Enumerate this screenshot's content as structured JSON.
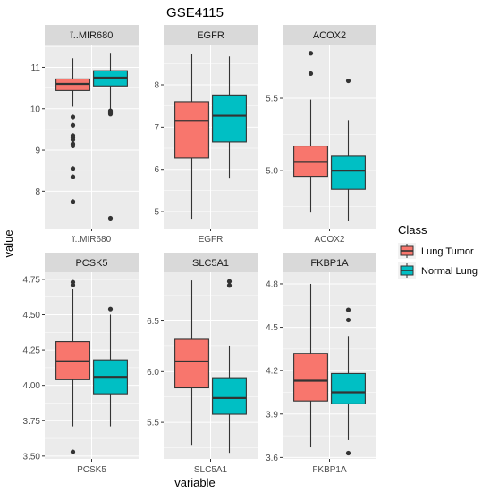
{
  "chart_data": {
    "type": "boxplot",
    "title": "GSE4115",
    "xlabel": "variable",
    "ylabel": "value",
    "legend": {
      "title": "Class",
      "position": "right",
      "entries": [
        {
          "name": "Lung Tumor",
          "color": "#F8766D"
        },
        {
          "name": "Normal Lung",
          "color": "#00BFC4"
        }
      ]
    },
    "colors": {
      "panel_bg": "#EBEBEB",
      "strip_bg": "#D9D9D9",
      "grid": "#FFFFFF",
      "tumor": "#F8766D",
      "normal": "#00BFC4"
    },
    "facets": [
      {
        "strip": "ï..MIR680",
        "category": "ï..MIR680",
        "ylim": [
          7.1,
          11.55
        ],
        "yticks": [
          8,
          9,
          10,
          11
        ],
        "ytick_labels": [
          "8",
          "9",
          "10",
          "11"
        ],
        "boxes": [
          {
            "group": "Lung Tumor",
            "min": 10.05,
            "q1": 10.44,
            "median": 10.6,
            "q3": 10.72,
            "max": 11.22,
            "outliers": [
              9.8,
              9.6,
              9.35,
              9.3,
              9.25,
              9.15,
              9.1,
              8.55,
              8.35,
              7.75
            ]
          },
          {
            "group": "Normal Lung",
            "min": 10.0,
            "q1": 10.55,
            "median": 10.75,
            "q3": 10.92,
            "max": 11.35,
            "outliers": [
              9.95,
              9.9,
              9.87,
              7.35
            ]
          }
        ]
      },
      {
        "strip": "EGFR",
        "category": "EGFR",
        "ylim": [
          4.6,
          8.95
        ],
        "yticks": [
          5,
          6,
          7,
          8
        ],
        "ytick_labels": [
          "5",
          "6",
          "7",
          "8"
        ],
        "boxes": [
          {
            "group": "Lung Tumor",
            "min": 4.83,
            "q1": 6.27,
            "median": 7.15,
            "q3": 7.6,
            "max": 8.73,
            "outliers": []
          },
          {
            "group": "Normal Lung",
            "min": 5.8,
            "q1": 6.65,
            "median": 7.27,
            "q3": 7.76,
            "max": 8.67,
            "outliers": []
          }
        ]
      },
      {
        "strip": "ACOX2",
        "category": "ACOX2",
        "ylim": [
          4.6,
          5.87
        ],
        "yticks": [
          5.0,
          5.5
        ],
        "ytick_labels": [
          "5.0",
          "5.5"
        ],
        "boxes": [
          {
            "group": "Lung Tumor",
            "min": 4.71,
            "q1": 4.96,
            "median": 5.06,
            "q3": 5.17,
            "max": 5.49,
            "outliers": [
              5.81,
              5.67
            ]
          },
          {
            "group": "Normal Lung",
            "min": 4.65,
            "q1": 4.87,
            "median": 5.0,
            "q3": 5.1,
            "max": 5.35,
            "outliers": [
              5.62
            ]
          }
        ]
      },
      {
        "strip": "PCSK5",
        "category": "PCSK5",
        "ylim": [
          3.48,
          4.8
        ],
        "yticks": [
          3.5,
          3.75,
          4.0,
          4.25,
          4.5,
          4.75
        ],
        "ytick_labels": [
          "3.50",
          "3.75",
          "4.00",
          "4.25",
          "4.50",
          "4.75"
        ],
        "boxes": [
          {
            "group": "Lung Tumor",
            "min": 3.71,
            "q1": 4.04,
            "median": 4.17,
            "q3": 4.31,
            "max": 4.68,
            "outliers": [
              4.73,
              4.71,
              3.53
            ]
          },
          {
            "group": "Normal Lung",
            "min": 3.71,
            "q1": 3.94,
            "median": 4.06,
            "q3": 4.18,
            "max": 4.5,
            "outliers": [
              4.54
            ]
          }
        ]
      },
      {
        "strip": "SLC5A1",
        "category": "SLC5A1",
        "ylim": [
          5.14,
          6.98
        ],
        "yticks": [
          5.5,
          6.0,
          6.5
        ],
        "ytick_labels": [
          "5.5",
          "6.0",
          "6.5"
        ],
        "boxes": [
          {
            "group": "Lung Tumor",
            "min": 5.27,
            "q1": 5.84,
            "median": 6.1,
            "q3": 6.32,
            "max": 6.9,
            "outliers": []
          },
          {
            "group": "Normal Lung",
            "min": 5.2,
            "q1": 5.58,
            "median": 5.74,
            "q3": 5.94,
            "max": 6.25,
            "outliers": [
              6.89,
              6.85
            ]
          }
        ]
      },
      {
        "strip": "FKBP1A",
        "category": "FKBP1A",
        "ylim": [
          3.59,
          4.88
        ],
        "yticks": [
          3.6,
          3.9,
          4.2,
          4.5,
          4.8
        ],
        "ytick_labels": [
          "3.6",
          "3.9",
          "4.2",
          "4.5",
          "4.8"
        ],
        "boxes": [
          {
            "group": "Lung Tumor",
            "min": 3.67,
            "q1": 3.99,
            "median": 4.13,
            "q3": 4.32,
            "max": 4.8,
            "outliers": []
          },
          {
            "group": "Normal Lung",
            "min": 3.72,
            "q1": 3.97,
            "median": 4.05,
            "q3": 4.18,
            "max": 4.44,
            "outliers": [
              4.62,
              4.55,
              3.63
            ]
          }
        ]
      }
    ]
  }
}
